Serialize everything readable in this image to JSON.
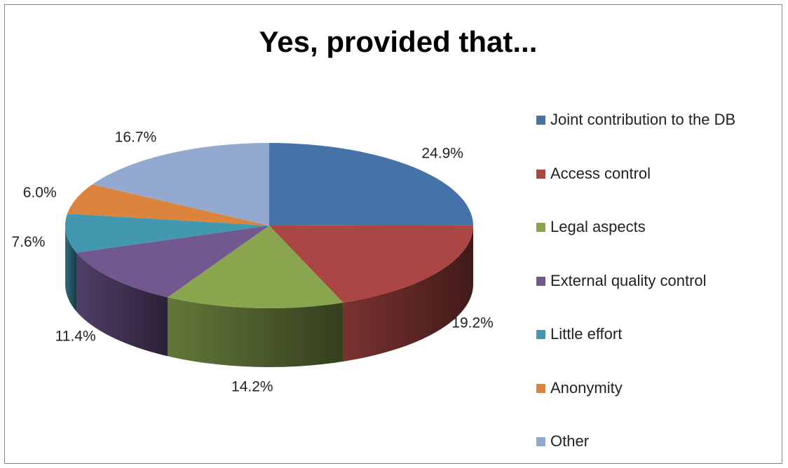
{
  "chart_data": {
    "type": "pie",
    "title": "Yes, provided that...",
    "slices": [
      {
        "label": "Joint contribution to the DB",
        "value": 24.9,
        "display": "24.9%",
        "color": "#4572a7"
      },
      {
        "label": "Access control",
        "value": 19.2,
        "display": "19.2%",
        "color": "#aa4643"
      },
      {
        "label": "Legal aspects",
        "value": 14.2,
        "display": "14.2%",
        "color": "#89a54e"
      },
      {
        "label": "External quality control",
        "value": 11.4,
        "display": "11.4%",
        "color": "#71588f"
      },
      {
        "label": "Little effort",
        "value": 7.6,
        "display": "7.6%",
        "color": "#4198af"
      },
      {
        "label": "Anonymity",
        "value": 6.0,
        "display": "6.0%",
        "color": "#db843d"
      },
      {
        "label": "Other",
        "value": 16.7,
        "display": "16.7%",
        "color": "#93a9cf"
      }
    ],
    "legend_position": "right",
    "three_d": true
  }
}
